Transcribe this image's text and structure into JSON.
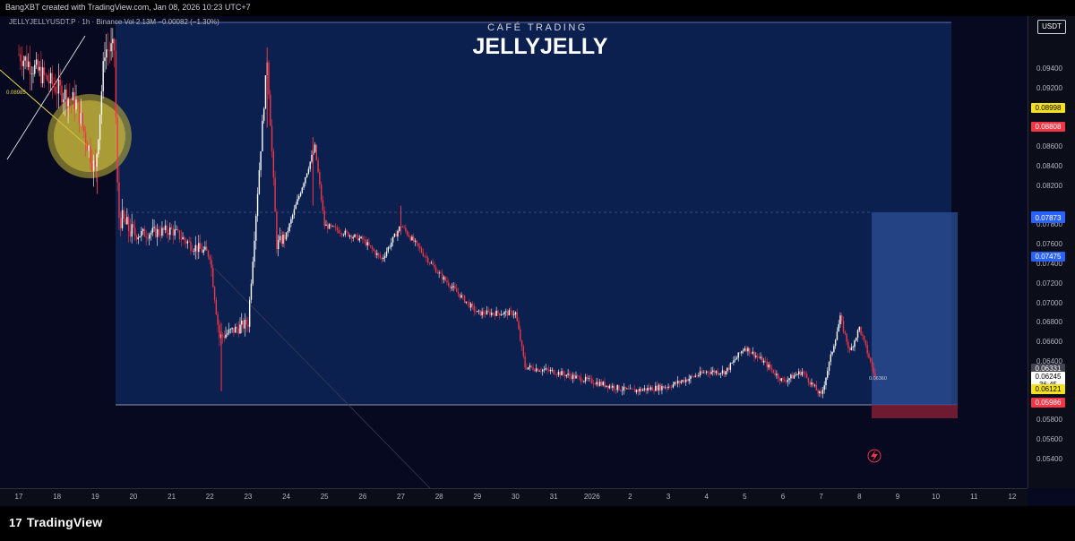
{
  "header": {
    "caption": "BangXBT created with TradingView.com, Jan 08, 2026 10:23 UTC+7"
  },
  "legend": {
    "text": "JELLYJELLYUSDT.P · 1h · Binance  Vol 2.13M  −0.00082 (−1.30%)"
  },
  "brand": {
    "small": "CAFÉ TRADING",
    "main": "JELLYJELLY"
  },
  "axis": {
    "currency": "USDT",
    "ticks": [
      "0.09400",
      "0.09200",
      "0.08800",
      "0.08600",
      "0.08400",
      "0.08200",
      "0.07800",
      "0.07600",
      "0.07400",
      "0.07200",
      "0.07000",
      "0.06800",
      "0.06600",
      "0.06400",
      "0.05800",
      "0.05600",
      "0.05400"
    ],
    "tick_values": [
      0.094,
      0.092,
      0.088,
      0.086,
      0.084,
      0.082,
      0.078,
      0.076,
      0.074,
      0.072,
      0.07,
      0.068,
      0.066,
      0.064,
      0.058,
      0.056,
      0.054
    ],
    "labels": [
      {
        "text": "0.08998",
        "value": 0.08998,
        "bg": "#f5e11e",
        "fg": "#000000"
      },
      {
        "text": "0.08808",
        "value": 0.08808,
        "bg": "#f23645",
        "fg": "#ffffff"
      },
      {
        "text": "0.07889",
        "value": 0.07889,
        "bg": "#2962ff",
        "fg": "#ffffff"
      },
      {
        "text": "0.07873",
        "value": 0.07873,
        "bg": "#2962ff",
        "fg": "#ffffff"
      },
      {
        "text": "0.07475",
        "value": 0.07475,
        "bg": "#2962ff",
        "fg": "#ffffff"
      },
      {
        "text": "0.06331",
        "value": 0.06331,
        "bg": "#434651",
        "fg": "#ffffff"
      },
      {
        "text": "0.06245",
        "value": 0.06245,
        "bg": "#ffffff",
        "fg": "#000000"
      },
      {
        "text": "36:45",
        "value": 0.06165,
        "bg": "#ffffff",
        "fg": "#000000"
      },
      {
        "text": "0.06121",
        "value": 0.06121,
        "bg": "#f5e11e",
        "fg": "#000000"
      },
      {
        "text": "0.05986",
        "value": 0.05986,
        "bg": "#f23645",
        "fg": "#ffffff"
      }
    ]
  },
  "time_axis": {
    "labels": [
      "17",
      "18",
      "19",
      "20",
      "21",
      "22",
      "23",
      "24",
      "25",
      "26",
      "27",
      "28",
      "29",
      "30",
      "31",
      "2026",
      "2",
      "3",
      "4",
      "5",
      "6",
      "7",
      "8",
      "9",
      "10",
      "11",
      "12"
    ]
  },
  "annotations": {
    "left_price": "0.08985",
    "position_label": "0.06360"
  },
  "footer": {
    "logo": "TradingView"
  },
  "colors": {
    "background": "#06091f",
    "up": "#ffffff",
    "down": "#f23645",
    "zone": "#0f2a63",
    "target": "#2b4f95",
    "stop": "#7a1d33",
    "highlight": "#d8c53d"
  },
  "chart_data": {
    "type": "candlestick",
    "title": "JELLYJELLY",
    "y_range": [
      0.053,
      0.0965
    ],
    "x_range": [
      "Dec 17",
      "Jan 12"
    ],
    "series": [
      {
        "name": "JELLYJELLYUSDT.P",
        "interval": "1h",
        "path_close": [
          [
            "Dec 17",
            0.0955
          ],
          [
            "Dec 18",
            0.092
          ],
          [
            "Dec 18 12h",
            0.0905
          ],
          [
            "Dec 19",
            0.0835
          ],
          [
            "Dec 19 06h",
            0.096
          ],
          [
            "Dec 19 12h",
            0.096
          ],
          [
            "Dec 19 14h",
            0.079
          ],
          [
            "Dec 20",
            0.077
          ],
          [
            "Dec 21",
            0.0775
          ],
          [
            "Dec 21 12h",
            0.076
          ],
          [
            "Dec 22",
            0.075
          ],
          [
            "Dec 22 06h",
            0.0665
          ],
          [
            "Dec 22 18h",
            0.0675
          ],
          [
            "Dec 23",
            0.068
          ],
          [
            "Dec 23 12h",
            0.095
          ],
          [
            "Dec 23 18h",
            0.076
          ],
          [
            "Dec 24",
            0.077
          ],
          [
            "Dec 24 18h",
            0.086
          ],
          [
            "Dec 25",
            0.078
          ],
          [
            "Dec 26",
            0.0765
          ],
          [
            "Dec 26 12h",
            0.0745
          ],
          [
            "Dec 27",
            0.078
          ],
          [
            "Dec 28",
            0.073
          ],
          [
            "Dec 29",
            0.069
          ],
          [
            "Dec 30",
            0.069
          ],
          [
            "Dec 30 06h",
            0.0635
          ],
          [
            "Dec 31",
            0.063
          ],
          [
            "Jan 1",
            0.062
          ],
          [
            "Jan 2",
            0.061
          ],
          [
            "Jan 3",
            0.0615
          ],
          [
            "Jan 4",
            0.063
          ],
          [
            "Jan 4 12h",
            0.063
          ],
          [
            "Jan 5",
            0.0655
          ],
          [
            "Jan 5 12h",
            0.064
          ],
          [
            "Jan 6",
            0.062
          ],
          [
            "Jan 6 12h",
            0.063
          ],
          [
            "Jan 7",
            0.0605
          ],
          [
            "Jan 7 12h",
            0.0685
          ],
          [
            "Jan 7 18h",
            0.065
          ],
          [
            "Jan 8",
            0.0675
          ],
          [
            "Jan 8 10h",
            0.0624
          ]
        ]
      }
    ],
    "high": {
      "at": "Dec 23 12h",
      "value": 0.096
    },
    "low": {
      "at": "Jan 2 12h",
      "value": 0.0588
    },
    "levels": {
      "support": 0.06121,
      "stop": 0.05986,
      "entry": 0.06245,
      "target": 0.07889,
      "mid_target": 0.07475
    },
    "xlabel": "",
    "ylabel": ""
  }
}
